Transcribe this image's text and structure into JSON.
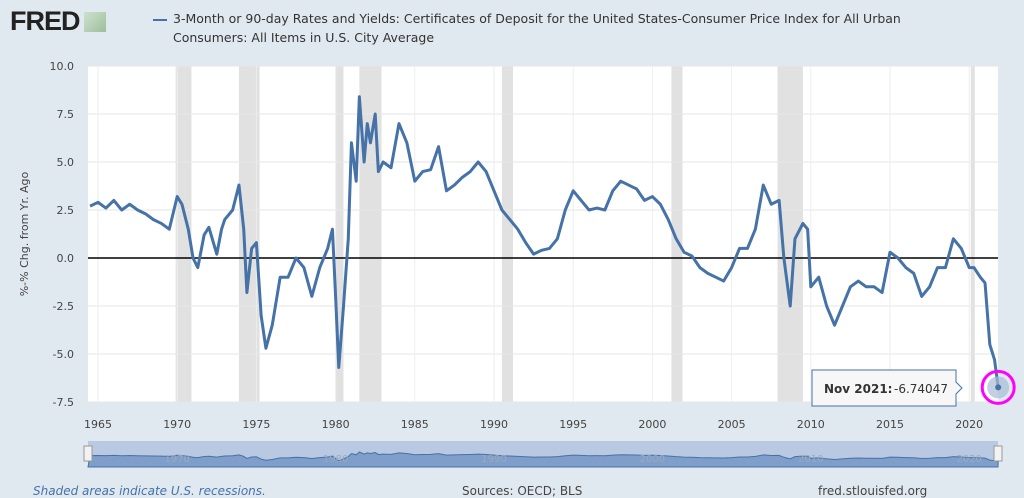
{
  "header": {
    "logo": "FRED",
    "title_line1": "3-Month or 90-day Rates and Yields: Certificates of Deposit for the United States-Consumer Price Index for All Urban",
    "title_line2": "Consumers: All Items in U.S. City Average"
  },
  "chart_data": {
    "type": "line",
    "ylabel": "%-% Chg. from Yr. Ago",
    "ylim": [
      -7.5,
      10
    ],
    "yticks": [
      "10.0",
      "7.5",
      "5.0",
      "2.5",
      "0.0",
      "-2.5",
      "-5.0",
      "-7.5"
    ],
    "xlim": [
      1964.5,
      2021.83
    ],
    "xticks": [
      "1965",
      "1970",
      "1975",
      "1980",
      "1985",
      "1990",
      "1995",
      "2000",
      "2005",
      "2010",
      "2015",
      "2020"
    ],
    "grid": true,
    "line_color": "#4572a7",
    "recessions": [
      [
        1969.9,
        1970.9
      ],
      [
        1973.9,
        1975.2
      ],
      [
        1980.0,
        1980.5
      ],
      [
        1981.5,
        1982.9
      ],
      [
        1990.5,
        1991.2
      ],
      [
        2001.2,
        2001.9
      ],
      [
        2007.9,
        2009.5
      ],
      [
        2020.1,
        2020.35
      ]
    ],
    "series": [
      {
        "x": [
          1964.5,
          1965,
          1965.5,
          1966,
          1966.5,
          1967,
          1967.5,
          1968,
          1968.5,
          1969,
          1969.5,
          1970,
          1970.3,
          1970.7,
          1971,
          1971.3,
          1971.7,
          1972,
          1972.5,
          1972.8,
          1973,
          1973.5,
          1973.9,
          1974.2,
          1974.4,
          1974.7,
          1975,
          1975.3,
          1975.6,
          1976,
          1976.5,
          1977,
          1977.5,
          1978,
          1978.5,
          1979,
          1979.5,
          1979.8,
          1980,
          1980.2,
          1980.5,
          1980.8,
          1981,
          1981.3,
          1981.5,
          1981.8,
          1982,
          1982.2,
          1982.5,
          1982.7,
          1983,
          1983.5,
          1984,
          1984.5,
          1985,
          1985.5,
          1986,
          1986.5,
          1987,
          1987.5,
          1988,
          1988.5,
          1989,
          1989.5,
          1990,
          1990.5,
          1991,
          1991.5,
          1992,
          1992.5,
          1993,
          1993.5,
          1994,
          1994.5,
          1995,
          1995.5,
          1996,
          1996.5,
          1997,
          1997.5,
          1998,
          1998.5,
          1999,
          1999.5,
          2000,
          2000.5,
          2001,
          2001.5,
          2002,
          2002.5,
          2003,
          2003.5,
          2004,
          2004.5,
          2005,
          2005.5,
          2006,
          2006.5,
          2007,
          2007.5,
          2008,
          2008.3,
          2008.7,
          2009,
          2009.5,
          2009.8,
          2010,
          2010.5,
          2011,
          2011.5,
          2012,
          2012.5,
          2013,
          2013.5,
          2014,
          2014.5,
          2015,
          2015.5,
          2016,
          2016.5,
          2017,
          2017.5,
          2018,
          2018.5,
          2019,
          2019.5,
          2020,
          2020.3,
          2020.7,
          2021,
          2021.3,
          2021.6,
          2021.83
        ],
        "y": [
          2.7,
          2.9,
          2.6,
          3.0,
          2.5,
          2.8,
          2.5,
          2.3,
          2.0,
          1.8,
          1.5,
          3.2,
          2.8,
          1.5,
          0.0,
          -0.5,
          1.2,
          1.6,
          0.2,
          1.5,
          2.0,
          2.5,
          3.8,
          1.5,
          -1.8,
          0.5,
          0.8,
          -3.0,
          -4.7,
          -3.5,
          -1.0,
          -1.0,
          0.0,
          -0.5,
          -2.0,
          -0.5,
          0.5,
          1.5,
          -2.0,
          -5.7,
          -2.5,
          1.0,
          6.0,
          4.0,
          8.4,
          5.0,
          7.0,
          6.0,
          7.5,
          4.5,
          5.0,
          4.7,
          7.0,
          6.0,
          4.0,
          4.5,
          4.6,
          5.8,
          3.5,
          3.8,
          4.2,
          4.5,
          5.0,
          4.5,
          3.5,
          2.5,
          2.0,
          1.5,
          0.8,
          0.2,
          0.4,
          0.5,
          1.0,
          2.5,
          3.5,
          3.0,
          2.5,
          2.6,
          2.5,
          3.5,
          4.0,
          3.8,
          3.6,
          3.0,
          3.2,
          2.8,
          2.0,
          1.0,
          0.3,
          0.1,
          -0.5,
          -0.8,
          -1.0,
          -1.2,
          -0.5,
          0.5,
          0.5,
          1.5,
          3.8,
          2.8,
          3.0,
          0.0,
          -2.5,
          1.0,
          1.8,
          1.5,
          -1.5,
          -1.0,
          -2.5,
          -3.5,
          -2.5,
          -1.5,
          -1.2,
          -1.5,
          -1.5,
          -1.8,
          0.3,
          0.0,
          -0.5,
          -0.8,
          -2.0,
          -1.5,
          -0.5,
          -0.5,
          1.0,
          0.5,
          -0.5,
          -0.5,
          -1.0,
          -1.3,
          -4.5,
          -5.3,
          -6.74047
        ]
      }
    ],
    "tooltip": {
      "date": "Nov 2021:",
      "value": "-6.74047"
    },
    "highlight_color": "#ff00ff"
  },
  "navigator": {
    "labels": [
      "1970",
      "1980",
      "1990",
      "2000",
      "2010",
      "2020"
    ]
  },
  "footer": {
    "recession_note": "Shaded areas indicate U.S. recessions.",
    "sources": "Sources: OECD; BLS",
    "site": "fred.stlouisfed.org"
  }
}
